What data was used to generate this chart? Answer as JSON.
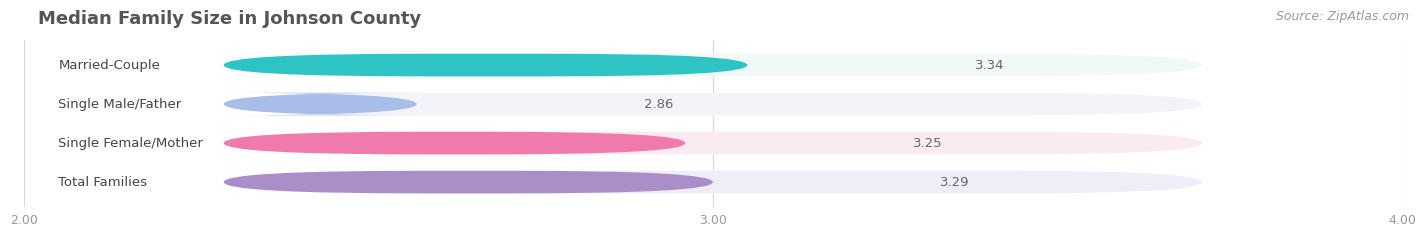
{
  "title": "Median Family Size in Johnson County",
  "source": "Source: ZipAtlas.com",
  "categories": [
    "Married-Couple",
    "Single Male/Father",
    "Single Female/Mother",
    "Total Families"
  ],
  "values": [
    3.34,
    2.86,
    3.25,
    3.29
  ],
  "bar_colors": [
    "#2ec4c4",
    "#a8bde8",
    "#f07aaa",
    "#aa8ec8"
  ],
  "bar_bg_colors": [
    "#f0f8f8",
    "#f2f4fa",
    "#faeaf2",
    "#f0ecf8"
  ],
  "value_text_colors": [
    "white",
    "#888888",
    "white",
    "white"
  ],
  "xmin": 2.0,
  "xmax": 4.0,
  "xticks": [
    2.0,
    3.0,
    4.0
  ],
  "bar_height": 0.58,
  "label_fontsize": 9.5,
  "value_fontsize": 9.5,
  "title_fontsize": 13,
  "source_fontsize": 9,
  "figsize": [
    14.06,
    2.33
  ],
  "dpi": 100
}
